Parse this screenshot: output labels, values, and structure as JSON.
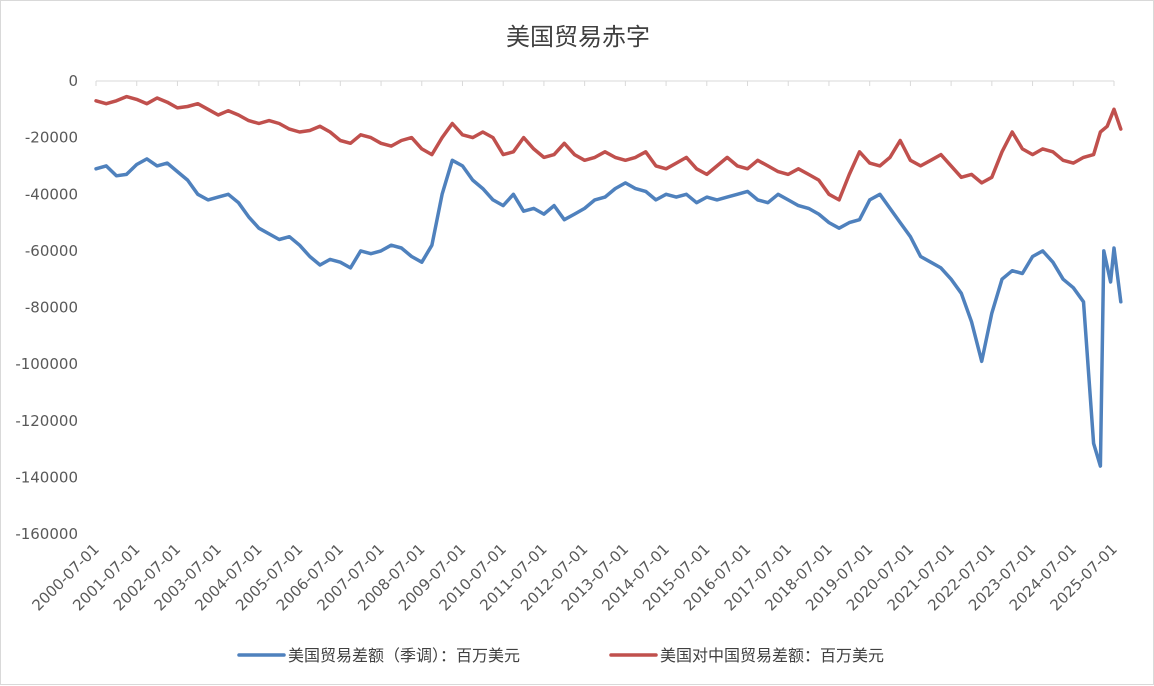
{
  "chart_data": {
    "type": "line",
    "title": "美国贸易赤字",
    "xlabel": "",
    "ylabel": "",
    "ylim": [
      -160000,
      0
    ],
    "yticks": [
      0,
      -20000,
      -40000,
      -60000,
      -80000,
      -100000,
      -120000,
      -140000,
      -160000
    ],
    "x_tick_labels": [
      "2000-07-01",
      "2001-07-01",
      "2002-07-01",
      "2003-07-01",
      "2004-07-01",
      "2005-07-01",
      "2006-07-01",
      "2007-07-01",
      "2008-07-01",
      "2009-07-01",
      "2010-07-01",
      "2011-07-01",
      "2012-07-01",
      "2013-07-01",
      "2014-07-01",
      "2015-07-01",
      "2016-07-01",
      "2017-07-01",
      "2018-07-01",
      "2019-07-01",
      "2020-07-01",
      "2021-07-01",
      "2022-07-01",
      "2023-07-01",
      "2024-07-01",
      "2025-07-01"
    ],
    "grid": false,
    "legend_position": "bottom",
    "series": [
      {
        "name": "美国贸易差额（季调）：百万美元",
        "color": "#4f81bd",
        "points": [
          [
            "2000-07-01",
            -31000
          ],
          [
            "2000-10-01",
            -30000
          ],
          [
            "2001-01-01",
            -33500
          ],
          [
            "2001-04-01",
            -33000
          ],
          [
            "2001-07-01",
            -29500
          ],
          [
            "2001-10-01",
            -27500
          ],
          [
            "2002-01-01",
            -30000
          ],
          [
            "2002-04-01",
            -29000
          ],
          [
            "2002-07-01",
            -32000
          ],
          [
            "2002-10-01",
            -35000
          ],
          [
            "2003-01-01",
            -40000
          ],
          [
            "2003-04-01",
            -42000
          ],
          [
            "2003-07-01",
            -41000
          ],
          [
            "2003-10-01",
            -40000
          ],
          [
            "2004-01-01",
            -43000
          ],
          [
            "2004-04-01",
            -48000
          ],
          [
            "2004-07-01",
            -52000
          ],
          [
            "2004-10-01",
            -54000
          ],
          [
            "2005-01-01",
            -56000
          ],
          [
            "2005-04-01",
            -55000
          ],
          [
            "2005-07-01",
            -58000
          ],
          [
            "2005-10-01",
            -62000
          ],
          [
            "2006-01-01",
            -65000
          ],
          [
            "2006-04-01",
            -63000
          ],
          [
            "2006-07-01",
            -64000
          ],
          [
            "2006-10-01",
            -66000
          ],
          [
            "2007-01-01",
            -60000
          ],
          [
            "2007-04-01",
            -61000
          ],
          [
            "2007-07-01",
            -60000
          ],
          [
            "2007-10-01",
            -58000
          ],
          [
            "2008-01-01",
            -59000
          ],
          [
            "2008-04-01",
            -62000
          ],
          [
            "2008-07-01",
            -64000
          ],
          [
            "2008-10-01",
            -58000
          ],
          [
            "2009-01-01",
            -40000
          ],
          [
            "2009-04-01",
            -28000
          ],
          [
            "2009-07-01",
            -30000
          ],
          [
            "2009-10-01",
            -35000
          ],
          [
            "2010-01-01",
            -38000
          ],
          [
            "2010-04-01",
            -42000
          ],
          [
            "2010-07-01",
            -44000
          ],
          [
            "2010-10-01",
            -40000
          ],
          [
            "2011-01-01",
            -46000
          ],
          [
            "2011-04-01",
            -45000
          ],
          [
            "2011-07-01",
            -47000
          ],
          [
            "2011-10-01",
            -44000
          ],
          [
            "2012-01-01",
            -49000
          ],
          [
            "2012-04-01",
            -47000
          ],
          [
            "2012-07-01",
            -45000
          ],
          [
            "2012-10-01",
            -42000
          ],
          [
            "2013-01-01",
            -41000
          ],
          [
            "2013-04-01",
            -38000
          ],
          [
            "2013-07-01",
            -36000
          ],
          [
            "2013-10-01",
            -38000
          ],
          [
            "2014-01-01",
            -39000
          ],
          [
            "2014-04-01",
            -42000
          ],
          [
            "2014-07-01",
            -40000
          ],
          [
            "2014-10-01",
            -41000
          ],
          [
            "2015-01-01",
            -40000
          ],
          [
            "2015-04-01",
            -43000
          ],
          [
            "2015-07-01",
            -41000
          ],
          [
            "2015-10-01",
            -42000
          ],
          [
            "2016-01-01",
            -41000
          ],
          [
            "2016-04-01",
            -40000
          ],
          [
            "2016-07-01",
            -39000
          ],
          [
            "2016-10-01",
            -42000
          ],
          [
            "2017-01-01",
            -43000
          ],
          [
            "2017-04-01",
            -40000
          ],
          [
            "2017-07-01",
            -42000
          ],
          [
            "2017-10-01",
            -44000
          ],
          [
            "2018-01-01",
            -45000
          ],
          [
            "2018-04-01",
            -47000
          ],
          [
            "2018-07-01",
            -50000
          ],
          [
            "2018-10-01",
            -52000
          ],
          [
            "2019-01-01",
            -50000
          ],
          [
            "2019-04-01",
            -49000
          ],
          [
            "2019-07-01",
            -42000
          ],
          [
            "2019-10-01",
            -40000
          ],
          [
            "2020-01-01",
            -45000
          ],
          [
            "2020-04-01",
            -50000
          ],
          [
            "2020-07-01",
            -55000
          ],
          [
            "2020-10-01",
            -62000
          ],
          [
            "2021-01-01",
            -64000
          ],
          [
            "2021-04-01",
            -66000
          ],
          [
            "2021-07-01",
            -70000
          ],
          [
            "2021-10-01",
            -75000
          ],
          [
            "2022-01-01",
            -85000
          ],
          [
            "2022-04-01",
            -99000
          ],
          [
            "2022-07-01",
            -82000
          ],
          [
            "2022-10-01",
            -70000
          ],
          [
            "2023-01-01",
            -67000
          ],
          [
            "2023-04-01",
            -68000
          ],
          [
            "2023-07-01",
            -62000
          ],
          [
            "2023-10-01",
            -60000
          ],
          [
            "2024-01-01",
            -64000
          ],
          [
            "2024-04-01",
            -70000
          ],
          [
            "2024-07-01",
            -73000
          ],
          [
            "2024-10-01",
            -78000
          ],
          [
            "2025-01-01",
            -128000
          ],
          [
            "2025-03-01",
            -136000
          ],
          [
            "2025-04-01",
            -60000
          ],
          [
            "2025-06-01",
            -71000
          ],
          [
            "2025-07-01",
            -59000
          ],
          [
            "2025-09-01",
            -78000
          ]
        ]
      },
      {
        "name": "美国对中国贸易差额：百万美元",
        "color": "#c0504d",
        "points": [
          [
            "2000-07-01",
            -7000
          ],
          [
            "2000-10-01",
            -8000
          ],
          [
            "2001-01-01",
            -7000
          ],
          [
            "2001-04-01",
            -5500
          ],
          [
            "2001-07-01",
            -6500
          ],
          [
            "2001-10-01",
            -8000
          ],
          [
            "2002-01-01",
            -6000
          ],
          [
            "2002-04-01",
            -7500
          ],
          [
            "2002-07-01",
            -9500
          ],
          [
            "2002-10-01",
            -9000
          ],
          [
            "2003-01-01",
            -8000
          ],
          [
            "2003-04-01",
            -10000
          ],
          [
            "2003-07-01",
            -12000
          ],
          [
            "2003-10-01",
            -10500
          ],
          [
            "2004-01-01",
            -12000
          ],
          [
            "2004-04-01",
            -14000
          ],
          [
            "2004-07-01",
            -15000
          ],
          [
            "2004-10-01",
            -14000
          ],
          [
            "2005-01-01",
            -15000
          ],
          [
            "2005-04-01",
            -17000
          ],
          [
            "2005-07-01",
            -18000
          ],
          [
            "2005-10-01",
            -17500
          ],
          [
            "2006-01-01",
            -16000
          ],
          [
            "2006-04-01",
            -18000
          ],
          [
            "2006-07-01",
            -21000
          ],
          [
            "2006-10-01",
            -22000
          ],
          [
            "2007-01-01",
            -19000
          ],
          [
            "2007-04-01",
            -20000
          ],
          [
            "2007-07-01",
            -22000
          ],
          [
            "2007-10-01",
            -23000
          ],
          [
            "2008-01-01",
            -21000
          ],
          [
            "2008-04-01",
            -20000
          ],
          [
            "2008-07-01",
            -24000
          ],
          [
            "2008-10-01",
            -26000
          ],
          [
            "2009-01-01",
            -20000
          ],
          [
            "2009-04-01",
            -15000
          ],
          [
            "2009-07-01",
            -19000
          ],
          [
            "2009-10-01",
            -20000
          ],
          [
            "2010-01-01",
            -18000
          ],
          [
            "2010-04-01",
            -20000
          ],
          [
            "2010-07-01",
            -26000
          ],
          [
            "2010-10-01",
            -25000
          ],
          [
            "2011-01-01",
            -20000
          ],
          [
            "2011-04-01",
            -24000
          ],
          [
            "2011-07-01",
            -27000
          ],
          [
            "2011-10-01",
            -26000
          ],
          [
            "2012-01-01",
            -22000
          ],
          [
            "2012-04-01",
            -26000
          ],
          [
            "2012-07-01",
            -28000
          ],
          [
            "2012-10-01",
            -27000
          ],
          [
            "2013-01-01",
            -25000
          ],
          [
            "2013-04-01",
            -27000
          ],
          [
            "2013-07-01",
            -28000
          ],
          [
            "2013-10-01",
            -27000
          ],
          [
            "2014-01-01",
            -25000
          ],
          [
            "2014-04-01",
            -30000
          ],
          [
            "2014-07-01",
            -31000
          ],
          [
            "2014-10-01",
            -29000
          ],
          [
            "2015-01-01",
            -27000
          ],
          [
            "2015-04-01",
            -31000
          ],
          [
            "2015-07-01",
            -33000
          ],
          [
            "2015-10-01",
            -30000
          ],
          [
            "2016-01-01",
            -27000
          ],
          [
            "2016-04-01",
            -30000
          ],
          [
            "2016-07-01",
            -31000
          ],
          [
            "2016-10-01",
            -28000
          ],
          [
            "2017-01-01",
            -30000
          ],
          [
            "2017-04-01",
            -32000
          ],
          [
            "2017-07-01",
            -33000
          ],
          [
            "2017-10-01",
            -31000
          ],
          [
            "2018-01-01",
            -33000
          ],
          [
            "2018-04-01",
            -35000
          ],
          [
            "2018-07-01",
            -40000
          ],
          [
            "2018-10-01",
            -42000
          ],
          [
            "2019-01-01",
            -33000
          ],
          [
            "2019-04-01",
            -25000
          ],
          [
            "2019-07-01",
            -29000
          ],
          [
            "2019-10-01",
            -30000
          ],
          [
            "2020-01-01",
            -27000
          ],
          [
            "2020-04-01",
            -21000
          ],
          [
            "2020-07-01",
            -28000
          ],
          [
            "2020-10-01",
            -30000
          ],
          [
            "2021-01-01",
            -28000
          ],
          [
            "2021-04-01",
            -26000
          ],
          [
            "2021-07-01",
            -30000
          ],
          [
            "2021-10-01",
            -34000
          ],
          [
            "2022-01-01",
            -33000
          ],
          [
            "2022-04-01",
            -36000
          ],
          [
            "2022-07-01",
            -34000
          ],
          [
            "2022-10-01",
            -25000
          ],
          [
            "2023-01-01",
            -18000
          ],
          [
            "2023-04-01",
            -24000
          ],
          [
            "2023-07-01",
            -26000
          ],
          [
            "2023-10-01",
            -24000
          ],
          [
            "2024-01-01",
            -25000
          ],
          [
            "2024-04-01",
            -28000
          ],
          [
            "2024-07-01",
            -29000
          ],
          [
            "2024-10-01",
            -27000
          ],
          [
            "2025-01-01",
            -26000
          ],
          [
            "2025-03-01",
            -18000
          ],
          [
            "2025-05-01",
            -16000
          ],
          [
            "2025-07-01",
            -10000
          ],
          [
            "2025-09-01",
            -17000
          ]
        ]
      }
    ]
  }
}
